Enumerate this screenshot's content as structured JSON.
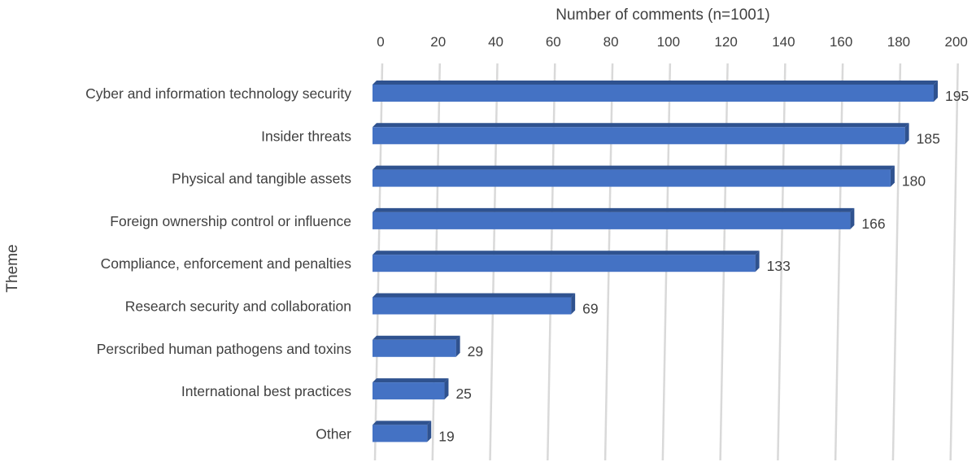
{
  "chart_data": {
    "type": "bar",
    "orientation": "horizontal",
    "style": "3d",
    "xlabel": "Number of comments (n=1001)",
    "ylabel": "Theme",
    "xlim": [
      0,
      200
    ],
    "xticks": [
      "0",
      "20",
      "40",
      "60",
      "80",
      "100",
      "120",
      "140",
      "160",
      "180",
      "200"
    ],
    "grid": true,
    "categories": [
      "Cyber and information technology security",
      "Insider threats",
      "Physical and tangible assets",
      "Foreign ownership control or influence",
      "Compliance, enforcement and penalties",
      "Research security and collaboration",
      "Perscribed human pathogens and toxins",
      "International best practices",
      "Other"
    ],
    "values": [
      195,
      185,
      180,
      166,
      133,
      69,
      29,
      25,
      19
    ],
    "data_labels": [
      "195",
      "185",
      "180",
      "166",
      "133",
      "69",
      "29",
      "25",
      "19"
    ],
    "colors": {
      "bar_front": "#4472c4",
      "bar_top": "#2f528f",
      "bar_side": "#2f528f",
      "grid": "#d9d9d9"
    }
  }
}
